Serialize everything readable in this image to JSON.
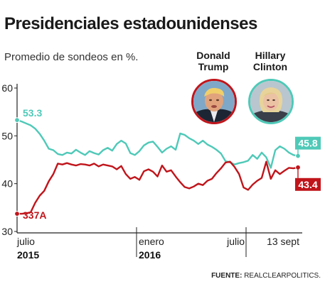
{
  "header": {
    "title": "Presidenciales estadounidenses",
    "subtitle": "Promedio de sondeos en %."
  },
  "candidates": [
    {
      "name_line1": "Donald",
      "name_line2": "Trump",
      "ring_color": "#c0151b"
    },
    {
      "name_line1": "Hillary",
      "name_line2": "Clinton",
      "ring_color": "#4fc9b8"
    }
  ],
  "source": {
    "label": "FUENTE:",
    "text": "REALCLEARPOLITICS."
  },
  "chart_data": {
    "type": "line",
    "y_ticks": [
      "60",
      "50",
      "40",
      "30"
    ],
    "ylim": [
      30,
      60
    ],
    "x_tick_labels": [
      {
        "label": "julio",
        "year": "2015"
      },
      {
        "label": "enero",
        "year": "2016"
      },
      {
        "label": "julio",
        "year": ""
      },
      {
        "label": "13 sept",
        "year": ""
      }
    ],
    "grid": false,
    "series": [
      {
        "name": "Hillary Clinton",
        "color": "#4fc9b8",
        "start_label": "53.3",
        "end_label": "45.8",
        "values": [
          53.3,
          53.0,
          52.6,
          52.2,
          51.5,
          50.4,
          49.0,
          47.3,
          47.0,
          46.2,
          46.0,
          46.5,
          46.3,
          47.1,
          46.5,
          46.0,
          46.8,
          46.4,
          46.1,
          47.0,
          47.5,
          46.9,
          48.3,
          49.0,
          48.4,
          46.4,
          46.0,
          46.8,
          48.0,
          48.6,
          48.8,
          47.7,
          46.5,
          47.3,
          47.8,
          47.1,
          50.5,
          50.2,
          49.5,
          49.0,
          48.3,
          49.0,
          48.2,
          47.7,
          47.1,
          46.3,
          44.7,
          44.5,
          44.0,
          44.3,
          44.5,
          44.8,
          46.0,
          45.2,
          46.5,
          45.5,
          43.3,
          47.0,
          47.8,
          47.3,
          46.5,
          46.0,
          45.8
        ]
      },
      {
        "name": "Donald Trump",
        "color": "#c0151b",
        "start_label": "337A",
        "end_label": "43.4",
        "values": [
          33.7,
          33.7,
          33.8,
          34.0,
          36.0,
          37.5,
          38.5,
          40.5,
          42.0,
          44.2,
          44.0,
          44.3,
          44.0,
          43.8,
          44.1,
          44.0,
          43.8,
          44.2,
          43.6,
          44.0,
          43.8,
          43.6,
          43.0,
          43.7,
          42.0,
          41.0,
          41.4,
          40.8,
          42.6,
          43.0,
          42.5,
          41.5,
          43.8,
          42.5,
          42.8,
          41.5,
          40.3,
          39.3,
          39.0,
          39.4,
          40.0,
          39.7,
          40.6,
          41.0,
          42.2,
          43.2,
          44.4,
          44.6,
          43.5,
          42.0,
          39.2,
          38.7,
          39.8,
          40.6,
          41.2,
          44.6,
          41.0,
          42.8,
          42.0,
          42.7,
          43.3,
          43.2,
          43.4
        ]
      }
    ]
  }
}
